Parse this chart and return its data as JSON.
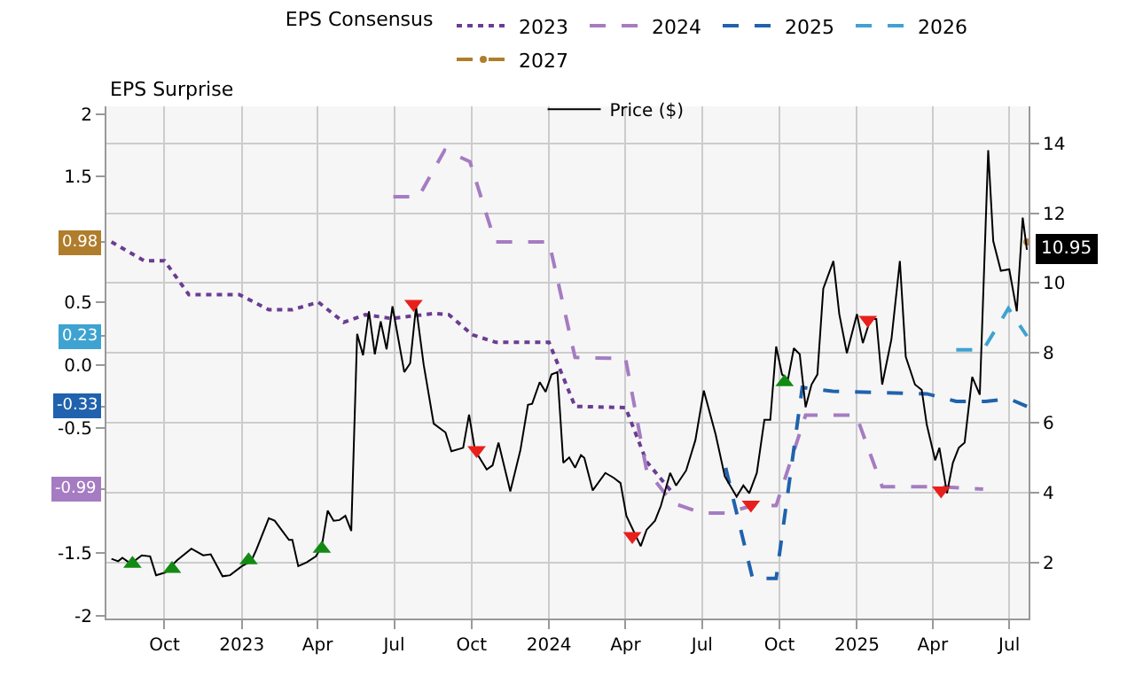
{
  "chart_data": {
    "type": "line",
    "legend_title": "EPS Consensus",
    "annotations": [
      "EPS Surprise"
    ],
    "xlim": [
      "2022-07-24",
      "2025-07-24"
    ],
    "xticks": [
      {
        "value": "2022-10-01",
        "label": "Oct"
      },
      {
        "value": "2023-01-01",
        "label": "2023"
      },
      {
        "value": "2023-04-01",
        "label": "Apr"
      },
      {
        "value": "2023-07-01",
        "label": "Jul"
      },
      {
        "value": "2023-10-01",
        "label": "Oct"
      },
      {
        "value": "2024-01-01",
        "label": "2024"
      },
      {
        "value": "2024-04-01",
        "label": "Apr"
      },
      {
        "value": "2024-07-01",
        "label": "Jul"
      },
      {
        "value": "2024-10-01",
        "label": "Oct"
      },
      {
        "value": "2025-01-01",
        "label": "2025"
      },
      {
        "value": "2025-04-01",
        "label": "Apr"
      },
      {
        "value": "2025-07-01",
        "label": "Jul"
      }
    ],
    "ylim": [
      -2.02,
      2.06
    ],
    "yticks": [
      -2,
      -1.5,
      {
        "value": -0.99,
        "label": "-0.99"
      },
      -0.5,
      {
        "value": -0.33,
        "label": "-0.33"
      },
      {
        "value": 0,
        "label": "0.0"
      },
      {
        "value": 0.23,
        "label": "0.23"
      },
      0.5,
      {
        "value": 0.98,
        "label": "0.98"
      },
      1.5,
      2
    ],
    "y2lim": [
      0.39,
      15.06
    ],
    "y2ticks": [
      2,
      4,
      6,
      8,
      10,
      12,
      14
    ],
    "grid": true,
    "legend": "top",
    "series": [
      {
        "name": "2023",
        "color": "#6a3d92",
        "line_style": "dotted",
        "x": [
          "2022-07-30",
          "2022-09-07",
          "2022-10-01",
          "2022-10-30",
          "2022-12-29",
          "2023-02-02",
          "2023-03-02",
          "2023-04-02",
          "2023-05-02",
          "2023-05-28",
          "2023-06-28",
          "2023-08-17",
          "2023-09-04",
          "2023-10-02",
          "2023-10-30",
          "2024-01-01",
          "2024-02-01",
          "2024-04-01",
          "2024-04-26",
          "2024-05-27"
        ],
        "values": [
          0.98,
          0.83,
          0.83,
          0.56,
          0.56,
          0.44,
          0.44,
          0.5,
          0.34,
          0.4,
          0.37,
          0.41,
          0.4,
          0.24,
          0.18,
          0.18,
          -0.33,
          -0.34,
          -0.77,
          -1.02
        ]
      },
      {
        "name": "2024",
        "color": "#a57cc2",
        "line_style": "dashed",
        "x": [
          "2023-06-30",
          "2023-07-30",
          "2023-08-30",
          "2023-09-29",
          "2023-10-29",
          "2024-01-01",
          "2024-02-01",
          "2024-04-01",
          "2024-04-26",
          "2024-05-27",
          "2024-07-01",
          "2024-07-29",
          "2024-08-30",
          "2024-09-27",
          "2024-11-01",
          "2024-12-31",
          "2025-01-31",
          "2025-04-11",
          "2025-05-31"
        ],
        "values": [
          1.34,
          1.34,
          1.71,
          1.62,
          0.98,
          0.98,
          0.06,
          0.05,
          -0.84,
          -1.1,
          -1.18,
          -1.18,
          -1.12,
          -1.12,
          -0.4,
          -0.4,
          -0.97,
          -0.97,
          -0.99
        ]
      },
      {
        "name": "2025",
        "color": "#2062ad",
        "line_style": "dashed",
        "x": [
          "2024-07-29",
          "2024-08-30",
          "2024-09-27",
          "2024-10-28",
          "2024-12-03",
          "2025-03-25",
          "2025-04-29",
          "2025-06-03",
          "2025-07-01",
          "2025-07-22"
        ],
        "values": [
          -0.82,
          -1.7,
          -1.7,
          -0.18,
          -0.21,
          -0.23,
          -0.29,
          -0.29,
          -0.27,
          -0.33
        ]
      },
      {
        "name": "2026",
        "color": "#3ea3d1",
        "line_style": "dashed",
        "x": [
          "2025-04-29",
          "2025-05-31",
          "2025-06-30",
          "2025-07-22"
        ],
        "values": [
          0.12,
          0.12,
          0.45,
          0.23
        ]
      },
      {
        "name": "2027",
        "color": "#b07d2c",
        "line_style": "dashed",
        "marker": "circle",
        "x": [
          "2025-07-22"
        ],
        "values": [
          0.98
        ]
      },
      {
        "name": "Price ($)",
        "color": "#000000",
        "axis": "y2",
        "line_style": "solid",
        "x": [
          "2022-07-30",
          "2022-08-07",
          "2022-08-12",
          "2022-08-22",
          "2022-09-04",
          "2022-09-14",
          "2022-09-21",
          "2022-10-02",
          "2022-10-09",
          "2022-10-16",
          "2022-11-02",
          "2022-11-16",
          "2022-11-25",
          "2022-12-09",
          "2022-12-18",
          "2023-01-01",
          "2023-01-12",
          "2023-01-18",
          "2023-02-02",
          "2023-02-09",
          "2023-02-18",
          "2023-02-26",
          "2023-03-02",
          "2023-03-09",
          "2023-03-19",
          "2023-03-30",
          "2023-04-06",
          "2023-04-13",
          "2023-04-20",
          "2023-04-27",
          "2023-05-04",
          "2023-05-11",
          "2023-05-18",
          "2023-05-25",
          "2023-06-01",
          "2023-06-08",
          "2023-06-15",
          "2023-06-22",
          "2023-06-29",
          "2023-07-13",
          "2023-07-20",
          "2023-07-27",
          "2023-08-05",
          "2023-08-17",
          "2023-08-31",
          "2023-09-07",
          "2023-09-21",
          "2023-09-28",
          "2023-10-05",
          "2023-10-19",
          "2023-10-26",
          "2023-11-02",
          "2023-11-16",
          "2023-11-28",
          "2023-12-07",
          "2023-12-12",
          "2023-12-21",
          "2023-12-28",
          "2024-01-04",
          "2024-01-11",
          "2024-01-18",
          "2024-01-25",
          "2024-02-01",
          "2024-02-08",
          "2024-02-12",
          "2024-02-22",
          "2024-03-08",
          "2024-03-18",
          "2024-03-26",
          "2024-04-02",
          "2024-04-19",
          "2024-04-26",
          "2024-05-06",
          "2024-05-13",
          "2024-05-24",
          "2024-05-31",
          "2024-06-12",
          "2024-06-23",
          "2024-07-03",
          "2024-07-17",
          "2024-07-28",
          "2024-08-11",
          "2024-08-19",
          "2024-08-26",
          "2024-09-04",
          "2024-09-13",
          "2024-09-20",
          "2024-09-27",
          "2024-10-04",
          "2024-10-11",
          "2024-10-18",
          "2024-10-25",
          "2024-11-01",
          "2024-11-08",
          "2024-11-15",
          "2024-11-22",
          "2024-12-04",
          "2024-12-11",
          "2024-12-20",
          "2025-01-01",
          "2025-01-08",
          "2025-01-17",
          "2025-01-24",
          "2025-01-31",
          "2025-02-11",
          "2025-02-21",
          "2025-02-28",
          "2025-03-11",
          "2025-03-19",
          "2025-03-25",
          "2025-04-04",
          "2025-04-09",
          "2025-04-18",
          "2025-04-25",
          "2025-05-02",
          "2025-05-09",
          "2025-05-18",
          "2025-05-27",
          "2025-06-06",
          "2025-06-12",
          "2025-06-21",
          "2025-07-01",
          "2025-07-10",
          "2025-07-17",
          "2025-07-22"
        ],
        "values": [
          2.1,
          2.03,
          2.13,
          1.96,
          2.2,
          2.17,
          1.63,
          1.71,
          1.89,
          2.06,
          2.39,
          2.2,
          2.23,
          1.6,
          1.63,
          1.89,
          2.03,
          2.35,
          3.26,
          3.19,
          2.9,
          2.64,
          2.64,
          1.89,
          2.0,
          2.17,
          2.46,
          3.48,
          3.19,
          3.21,
          3.33,
          2.9,
          8.54,
          7.93,
          9.19,
          7.96,
          8.9,
          8.1,
          9.33,
          7.45,
          7.7,
          9.33,
          7.67,
          5.97,
          5.72,
          5.18,
          5.28,
          6.23,
          5.21,
          4.66,
          4.78,
          5.43,
          4.03,
          5.21,
          6.51,
          6.54,
          7.16,
          6.88,
          7.38,
          7.45,
          4.85,
          5.0,
          4.71,
          5.07,
          4.99,
          4.06,
          4.56,
          4.42,
          4.27,
          3.33,
          2.46,
          2.93,
          3.19,
          3.62,
          4.56,
          4.2,
          4.63,
          5.5,
          6.92,
          5.67,
          4.46,
          3.88,
          4.2,
          3.98,
          4.56,
          6.08,
          6.08,
          8.18,
          7.38,
          7.24,
          8.13,
          7.96,
          6.44,
          7.09,
          7.38,
          9.84,
          10.63,
          9.11,
          7.99,
          9.11,
          8.28,
          8.97,
          8.97,
          7.09,
          8.39,
          10.63,
          7.89,
          7.09,
          6.94,
          5.94,
          4.92,
          5.28,
          3.98,
          4.85,
          5.28,
          5.43,
          7.31,
          6.8,
          13.8,
          11.2,
          10.35,
          10.39,
          9.19,
          11.87,
          10.95
        ],
        "value_labels": [
          null,
          null,
          null,
          null,
          null,
          null,
          null,
          null,
          null,
          null,
          null,
          null,
          null,
          null,
          null,
          null,
          null,
          null,
          null,
          null,
          null,
          null,
          null,
          null,
          null,
          null,
          null,
          null,
          null,
          null,
          null,
          null,
          null,
          null,
          null,
          null,
          null,
          null,
          null,
          null,
          null,
          null,
          null,
          null,
          null,
          null,
          null,
          null,
          null,
          null,
          null,
          null,
          null,
          null,
          null,
          null,
          null,
          null,
          null,
          null,
          null,
          null,
          null,
          null,
          null,
          null,
          null,
          null,
          null,
          null,
          null,
          null,
          null,
          null,
          null,
          null,
          null,
          null,
          null,
          null,
          null,
          null,
          null,
          null,
          null,
          null,
          null,
          null,
          null,
          null,
          null,
          null,
          null,
          null,
          null,
          null,
          null,
          null,
          null,
          null,
          null,
          null,
          null,
          null,
          null,
          null,
          null,
          null,
          null,
          null,
          null,
          null,
          null,
          null,
          null,
          null,
          null,
          null,
          null,
          null,
          null,
          null,
          null,
          null,
          "10.95"
        ]
      },
      {
        "type": "scatter",
        "color": "#138a13",
        "axis": "y2",
        "marker": "triangle",
        "x": [
          "2022-08-24",
          "2022-10-10",
          "2023-01-09",
          "2023-04-06",
          "2024-10-07"
        ],
        "values": [
          1.96,
          1.81,
          2.06,
          2.39,
          7.16
        ]
      },
      {
        "type": "scatter",
        "color": "#e8201c",
        "axis": "y2",
        "marker": "triangle",
        "x": [
          "2023-07-24",
          "2023-10-07",
          "2024-04-09",
          "2024-08-28",
          "2025-01-14",
          "2025-04-11"
        ],
        "values": [
          9.4,
          5.21,
          2.75,
          3.65,
          8.94,
          4.06
        ]
      }
    ]
  }
}
